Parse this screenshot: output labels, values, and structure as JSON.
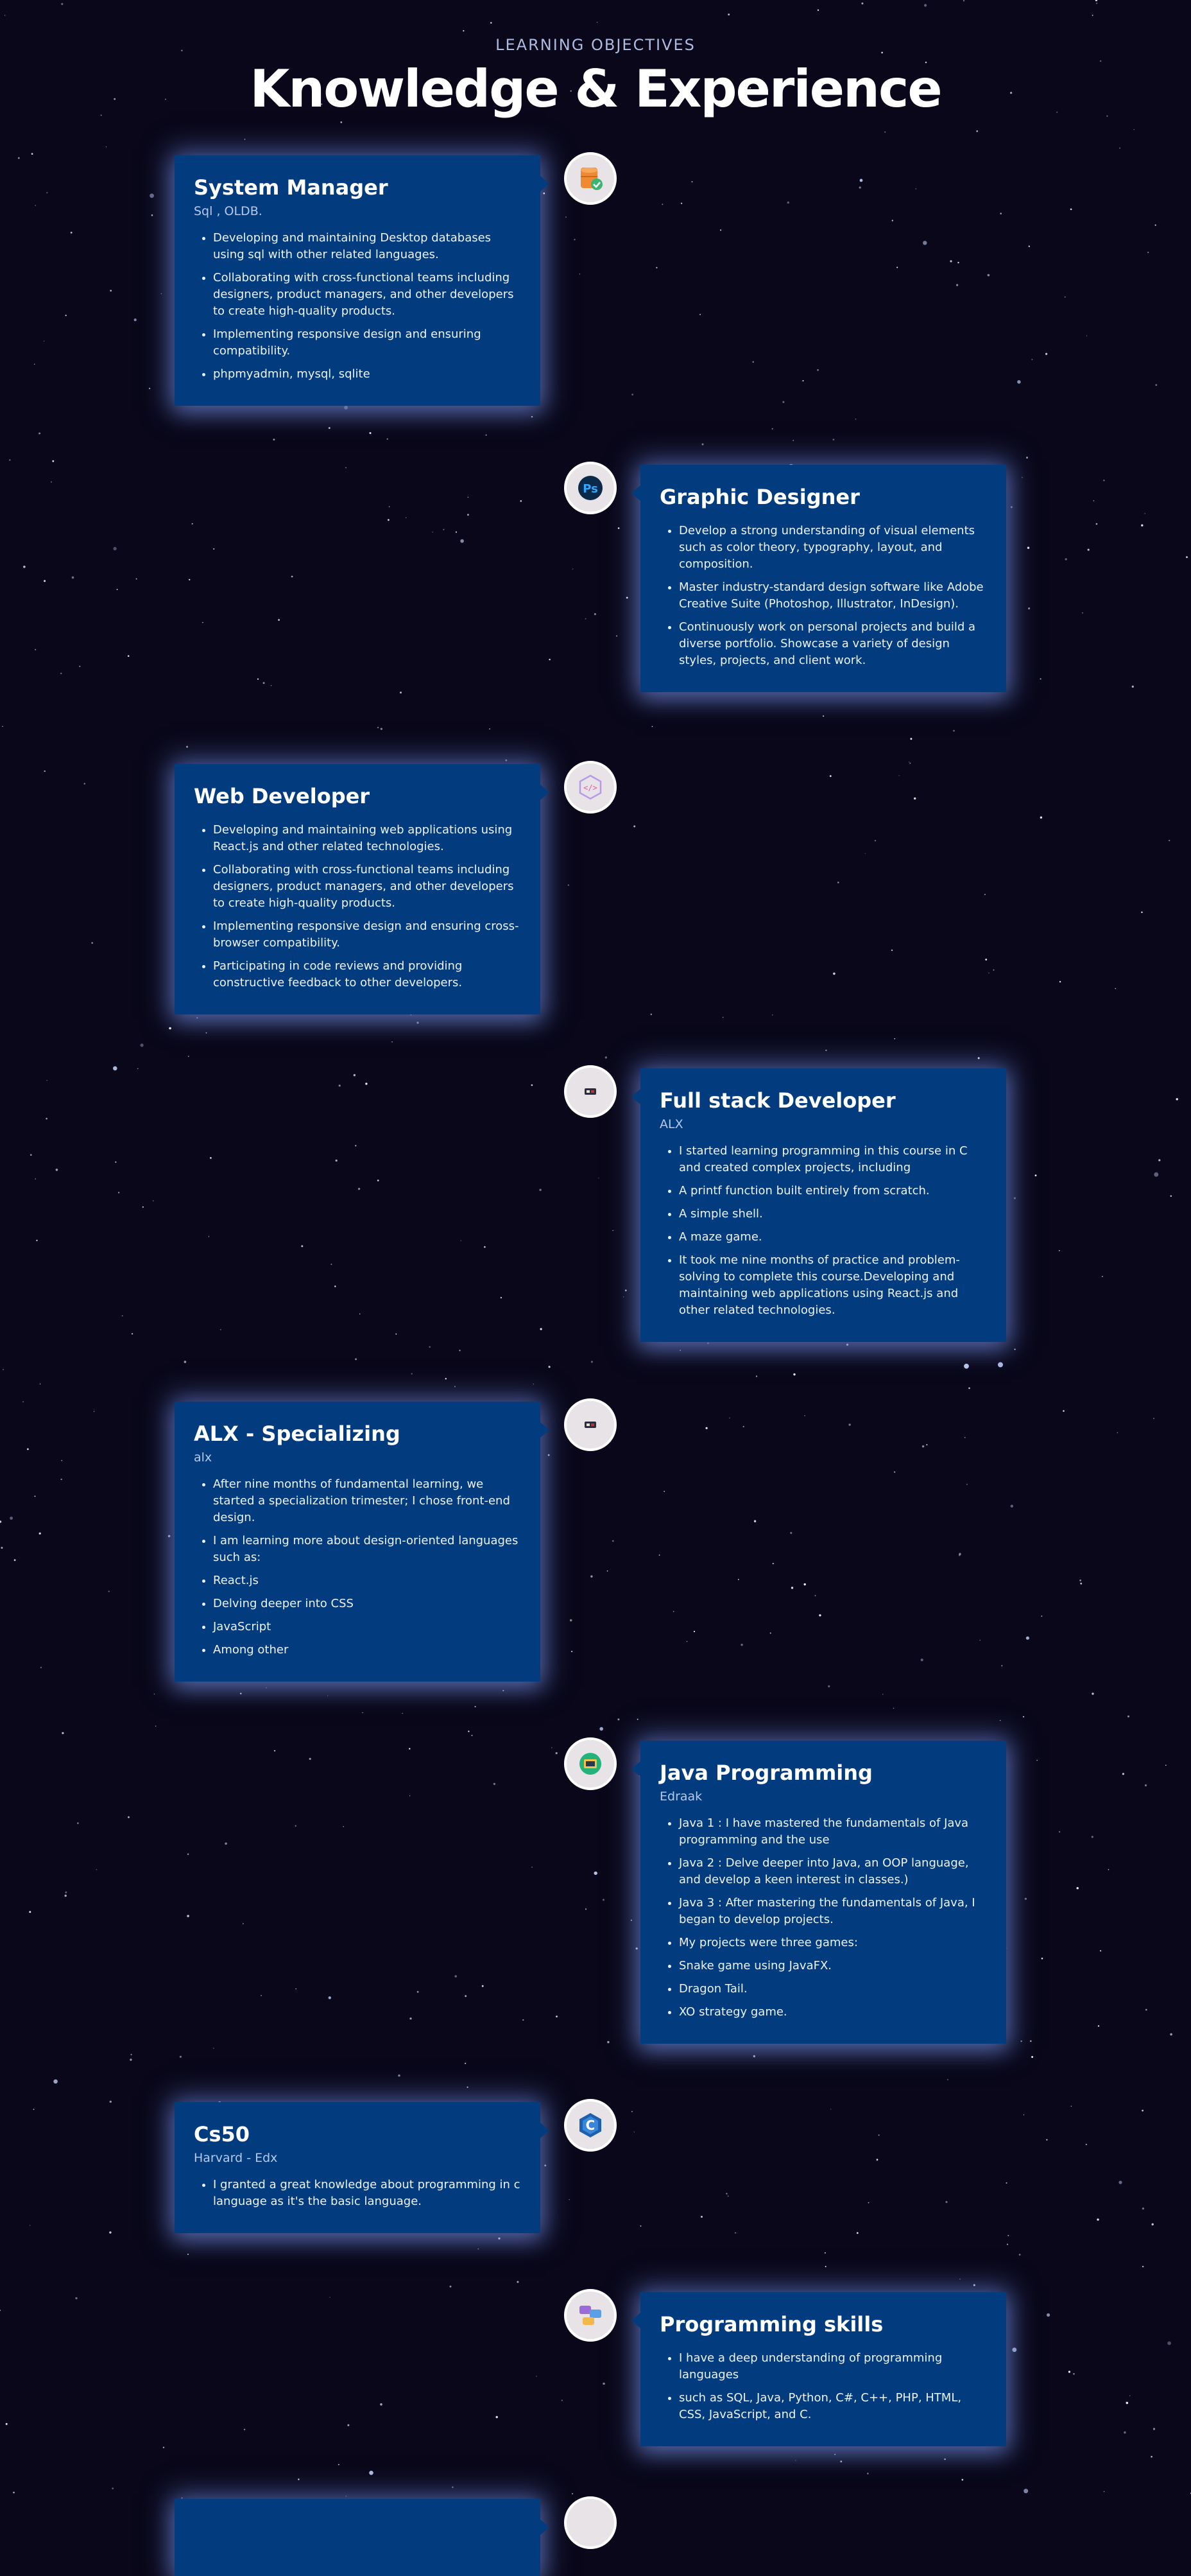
{
  "header": {
    "subtitle": "LEARNING OBJECTIVES",
    "title": "Knowledge & Experience"
  },
  "timeline": [
    {
      "title": "System Manager",
      "org": "Sql , OLDB.",
      "icon": "database-icon",
      "items": [
        "Developing and maintaining Desktop databases using sql with other related languages.",
        "Collaborating with cross-functional teams including designers, product managers, and other developers to create high-quality products.",
        "Implementing responsive design and ensuring compatibility.",
        "phpmyadmin, mysql, sqlite"
      ]
    },
    {
      "title": "Graphic Designer",
      "org": "",
      "icon": "photoshop-icon",
      "items": [
        "Develop a strong understanding of visual elements such as color theory, typography, layout, and composition.",
        "Master industry-standard design software like Adobe Creative Suite (Photoshop, Illustrator, InDesign).",
        "Continuously work on personal projects and build a diverse portfolio. Showcase a variety of design styles, projects, and client work."
      ]
    },
    {
      "title": "Web Developer",
      "org": "",
      "icon": "code-icon",
      "items": [
        "Developing and maintaining web applications using React.js and other related technologies.",
        "Collaborating with cross-functional teams including designers, product managers, and other developers to create high-quality products.",
        "Implementing responsive design and ensuring cross-browser compatibility.",
        "Participating in code reviews and providing constructive feedback to other developers."
      ]
    },
    {
      "title": "Full stack Developer",
      "org": "ALX",
      "icon": "alx-logo-icon",
      "items": [
        "I started learning programming in this course in C and created complex projects, including",
        "A printf function built entirely from scratch.",
        "A simple shell.",
        "A maze game.",
        "It took me nine months of practice and problem-solving to complete this course.Developing and maintaining web applications using React.js and other related technologies."
      ]
    },
    {
      "title": "ALX - Specializing",
      "org": "alx",
      "icon": "alx-logo-icon",
      "items": [
        "After nine months of fundamental learning, we started a specialization trimester; I chose front-end design.",
        "I am learning more about design-oriented languages such as:",
        "React.js",
        "Delving deeper into CSS",
        "JavaScript",
        "Among other"
      ]
    },
    {
      "title": "Java Programming",
      "org": "Edraak",
      "icon": "edraak-icon",
      "items": [
        "Java 1 : I have mastered the fundamentals of Java programming and the use",
        "Java 2 : Delve deeper into Java, an OOP language, and develop a keen interest in classes.)",
        "Java 3 : After mastering the fundamentals of Java, I began to develop projects.",
        "My projects were three games:",
        "Snake game using JavaFX.",
        "Dragon Tail.",
        "XO strategy game."
      ]
    },
    {
      "title": "Cs50",
      "org": "Harvard - Edx",
      "icon": "c-language-icon",
      "items": [
        "I granted a great knowledge about programming in c language as it's the basic language."
      ]
    },
    {
      "title": "Programming skills",
      "org": "",
      "icon": "chat-bubbles-icon",
      "items": [
        "I have a deep understanding of programming languages",
        "such as SQL, Java, Python, C#, C++, PHP, HTML, CSS, JavaScript, and C."
      ]
    }
  ]
}
